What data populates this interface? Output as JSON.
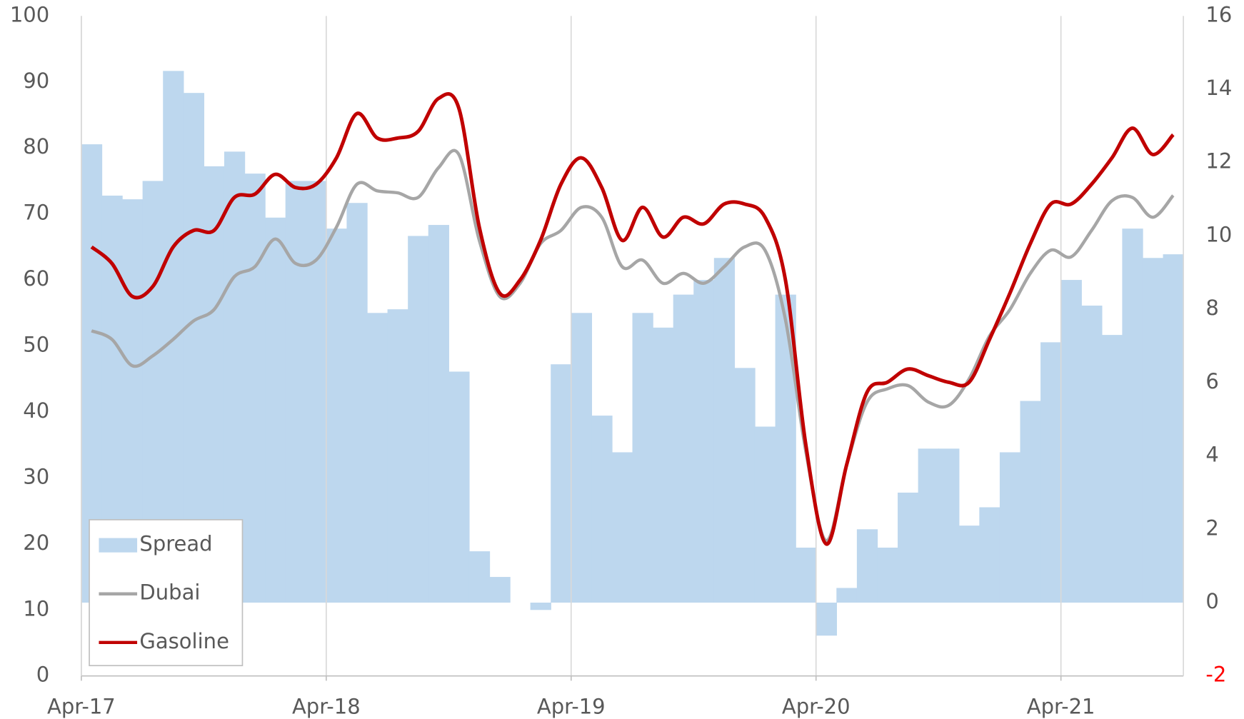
{
  "chart_data": {
    "type": "bar-line",
    "categories": [
      "Apr-17",
      null,
      null,
      null,
      null,
      null,
      null,
      null,
      null,
      null,
      null,
      null,
      "Apr-18",
      null,
      null,
      null,
      null,
      null,
      null,
      null,
      null,
      null,
      null,
      null,
      "Apr-19",
      null,
      null,
      null,
      null,
      null,
      null,
      null,
      null,
      null,
      null,
      null,
      "Apr-20",
      null,
      null,
      null,
      null,
      null,
      null,
      null,
      null,
      null,
      null,
      null,
      "Apr-21",
      null,
      null,
      null,
      null,
      null
    ],
    "series": [
      {
        "name": "Spread",
        "type": "bar",
        "axis": "y2",
        "color": "#bdd7ee",
        "values": [
          12.5,
          11.1,
          11.0,
          11.5,
          14.5,
          13.9,
          11.9,
          12.3,
          11.7,
          10.5,
          11.5,
          11.5,
          10.2,
          10.9,
          7.9,
          8.0,
          10.0,
          10.3,
          6.3,
          1.4,
          0.7,
          0.0,
          -0.2,
          6.5,
          7.9,
          5.1,
          4.1,
          7.9,
          7.5,
          8.4,
          8.8,
          9.4,
          6.4,
          4.8,
          8.4,
          1.5,
          -0.9,
          0.4,
          2.0,
          1.5,
          3.0,
          4.2,
          4.2,
          2.1,
          2.6,
          4.1,
          5.5,
          7.1,
          8.8,
          8.1,
          7.3,
          10.2,
          9.4,
          9.5
        ]
      },
      {
        "name": "Dubai",
        "type": "line",
        "color": "#a6a6a6",
        "values": [
          52.3,
          51,
          47,
          48.5,
          51,
          53.8,
          55.5,
          60.5,
          62,
          66.2,
          62.5,
          63,
          68,
          74.5,
          73.5,
          73.2,
          72.5,
          77,
          79,
          66,
          57.5,
          59.5,
          65.5,
          67.5,
          71,
          69.5,
          62,
          63,
          59.5,
          61,
          59.5,
          62,
          65,
          64.5,
          54,
          34,
          20.5,
          32,
          41.5,
          43.5,
          44,
          41.5,
          41,
          45,
          51.5,
          55.5,
          61,
          64.5,
          63.5,
          67.5,
          72,
          72.5,
          69.5,
          72.8
        ]
      },
      {
        "name": "Gasoline",
        "type": "line",
        "color": "#c00000",
        "values": [
          65,
          62.5,
          57.5,
          59,
          65,
          67.5,
          67.5,
          72.5,
          73,
          76,
          74,
          74.5,
          78.5,
          85.2,
          81.5,
          81.5,
          82.5,
          87.5,
          86,
          68,
          58,
          60,
          66,
          74.5,
          78.5,
          74,
          66,
          71,
          66.5,
          69.5,
          68.5,
          71.5,
          71.5,
          69.5,
          60,
          35,
          20,
          32,
          43,
          44.5,
          46.5,
          45.5,
          44.5,
          44.5,
          51,
          58,
          65.5,
          71.5,
          71.5,
          74.5,
          78.5,
          83,
          79,
          82
        ]
      }
    ],
    "ylim": [
      0,
      100
    ],
    "yticks": [
      0,
      10,
      20,
      30,
      40,
      50,
      60,
      70,
      80,
      90,
      100
    ],
    "y2lim": [
      -2,
      16
    ],
    "y2ticks": [
      -2,
      0,
      2,
      4,
      6,
      8,
      10,
      12,
      14,
      16
    ],
    "y2_negative_tick_color": "#ff0000",
    "grid": "x",
    "legend": "lower left"
  }
}
